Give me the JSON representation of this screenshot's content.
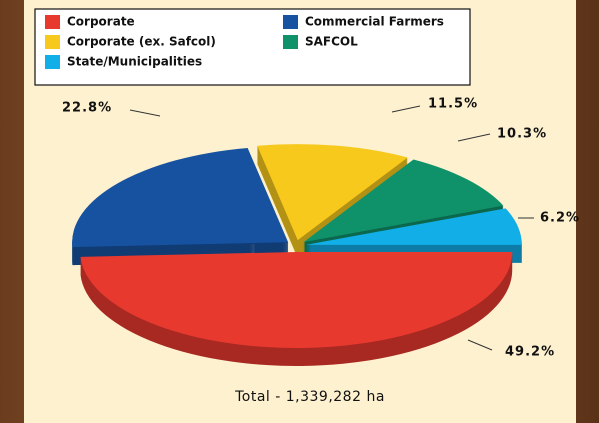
{
  "chart_data": {
    "type": "pie",
    "categories": [
      "Corporate",
      "Commercial Farmers",
      "Corporate (ex. Safcol)",
      "SAFCOL",
      "State/Municipalities"
    ],
    "values": [
      49.2,
      22.8,
      11.5,
      10.3,
      6.2
    ],
    "value_labels": [
      "49.2%",
      "22.8%",
      "11.5%",
      "10.3%",
      "6.2%"
    ],
    "colors": [
      "#e8392f",
      "#1652a0",
      "#f7c91c",
      "#0f916a",
      "#12aee8"
    ],
    "annotation": "Total - 1,339,282 ha"
  }
}
